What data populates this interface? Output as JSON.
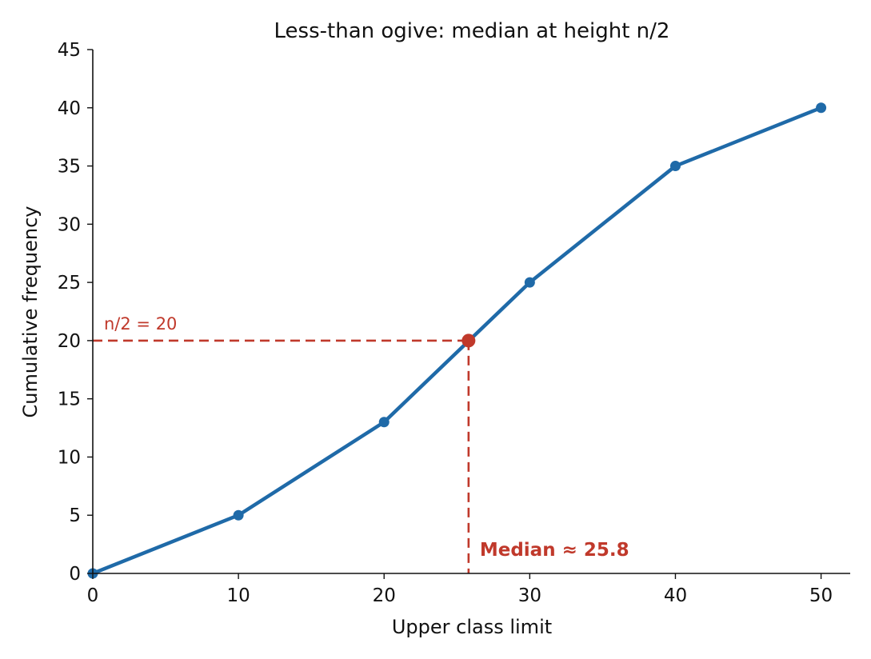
{
  "chart_data": {
    "type": "line",
    "title": "Less-than ogive: median at height n/2",
    "xlabel": "Upper class limit",
    "ylabel": "Cumulative frequency",
    "xlim": [
      0,
      52
    ],
    "ylim": [
      0,
      45
    ],
    "xticks": [
      0,
      10,
      20,
      30,
      40,
      50
    ],
    "yticks": [
      0,
      5,
      10,
      15,
      20,
      25,
      30,
      35,
      40,
      45
    ],
    "grid": false,
    "series": [
      {
        "x": [
          0,
          10,
          20,
          30,
          40,
          50
        ],
        "y": [
          0,
          5,
          13,
          25,
          35,
          40
        ],
        "color": "#1f6aa8"
      }
    ],
    "median": {
      "x": 25.8,
      "y": 20,
      "color": "#c0392b"
    },
    "annotations": {
      "half_n_label": "n/2 = 20",
      "median_label": "Median ≈ 25.8"
    }
  }
}
